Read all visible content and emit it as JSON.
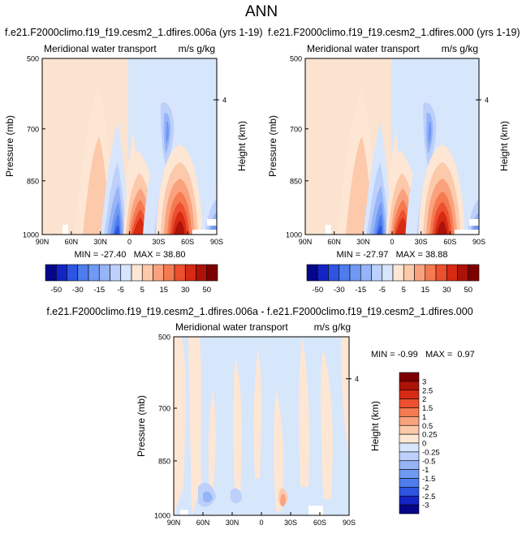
{
  "page_title": "ANN",
  "colors": {
    "cold": [
      "#06068a",
      "#1424c4",
      "#2d55e2",
      "#4d7ced",
      "#7099f3",
      "#96b4f7",
      "#bcd0fb",
      "#d8e6fd"
    ],
    "warm": [
      "#fde6d4",
      "#fcc9ab",
      "#faa27e",
      "#f57a52",
      "#ec502f",
      "#d72a12",
      "#ad1208",
      "#7d0000"
    ],
    "plot_bg_left": "#fbe3cf",
    "plot_bg_right": "#d6e6fb"
  },
  "chart_data": [
    {
      "id": "panel-a",
      "type": "contour",
      "title": "f.e21.F2000climo.f19_f19.cesm2_1.dfires.006a (yrs 1-19)",
      "subtitle_left": "Meridional water transport",
      "subtitle_right": "m/s g/kg",
      "ylabel": "Pressure (mb)",
      "ylabel_right": "Height (km)",
      "x_ticks": [
        "90N",
        "60N",
        "30N",
        "0",
        "30S",
        "60S",
        "90S"
      ],
      "y_ticks": [
        "500",
        "700",
        "850",
        "1000"
      ],
      "y_right_ticks": [
        "4"
      ],
      "stats": "MIN = -27.40   MAX = 38.80",
      "contour_levels": [
        -50,
        -40,
        -30,
        -20,
        -15,
        -10,
        -5,
        -1,
        1,
        5,
        10,
        15,
        20,
        30,
        40,
        50
      ]
    },
    {
      "id": "panel-b",
      "type": "contour",
      "title": "f.e21.F2000climo.f19_f19.cesm2_1.dfires.000 (yrs 1-19)",
      "subtitle_left": "Meridional water transport",
      "subtitle_right": "m/s g/kg",
      "ylabel": "Pressure (mb)",
      "ylabel_right": "Height (km)",
      "x_ticks": [
        "90N",
        "60N",
        "30N",
        "0",
        "30S",
        "60S",
        "90S"
      ],
      "y_ticks": [
        "500",
        "700",
        "850",
        "1000"
      ],
      "y_right_ticks": [
        "4"
      ],
      "stats": "MIN = -27.97   MAX = 38.88",
      "contour_levels": [
        -50,
        -40,
        -30,
        -20,
        -15,
        -10,
        -5,
        -1,
        1,
        5,
        10,
        15,
        20,
        30,
        40,
        50
      ]
    },
    {
      "id": "panel-diff",
      "type": "contour",
      "title": "f.e21.F2000climo.f19_f19.cesm2_1.dfires.006a - f.e21.F2000climo.f19_f19.cesm2_1.dfires.000",
      "subtitle_left": "Meridional water transport",
      "subtitle_right": "m/s g/kg",
      "ylabel": "Pressure (mb)",
      "ylabel_right": "Height (km)",
      "x_ticks": [
        "90N",
        "60N",
        "30N",
        "0",
        "30S",
        "60S",
        "90S"
      ],
      "y_ticks": [
        "500",
        "700",
        "850",
        "1000"
      ],
      "y_right_ticks": [
        "4"
      ],
      "stats": "MIN = -0.99   MAX =  0.97",
      "contour_levels": [
        -3,
        -2.5,
        -2,
        -1.5,
        -1,
        -0.5,
        -0.25,
        0,
        0.25,
        0.5,
        1,
        1.5,
        2,
        2.5,
        3
      ]
    }
  ],
  "colorbars": {
    "horizontal_labels": [
      "-50",
      "-30",
      "-15",
      "-5",
      "5",
      "15",
      "30",
      "50"
    ],
    "vertical_labels": [
      "3",
      "2.5",
      "2",
      "1.5",
      "1",
      "0.5",
      "0.25",
      "0",
      "-0.25",
      "-0.5",
      "-1",
      "-1.5",
      "-2",
      "-2.5",
      "-3"
    ]
  }
}
